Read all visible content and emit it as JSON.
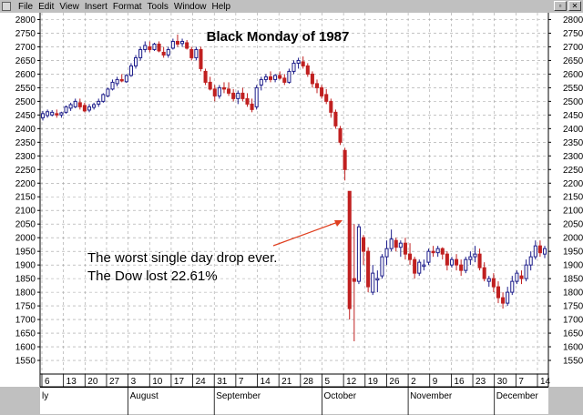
{
  "menubar": {
    "items": [
      {
        "label": "File"
      },
      {
        "label": "Edit"
      },
      {
        "label": "View"
      },
      {
        "label": "Insert"
      },
      {
        "label": "Format"
      },
      {
        "label": "Tools"
      },
      {
        "label": "Window"
      },
      {
        "label": "Help"
      }
    ]
  },
  "chart_data": {
    "type": "candlestick",
    "title": "Black Monday of 1987",
    "annotation": [
      "The worst single day drop ever.",
      "The Dow lost 22.61%"
    ],
    "ylim": [
      1500,
      2825
    ],
    "yticks": [
      1550,
      1600,
      1650,
      1700,
      1750,
      1800,
      1850,
      1900,
      1950,
      2000,
      2050,
      2100,
      2150,
      2200,
      2250,
      2300,
      2350,
      2400,
      2450,
      2500,
      2550,
      2600,
      2650,
      2700,
      2750,
      2800
    ],
    "grid": true,
    "date_ticks": [
      "6",
      "13",
      "20",
      "27",
      "3",
      "10",
      "17",
      "24",
      "31",
      "7",
      "14",
      "21",
      "28",
      "5",
      "12",
      "19",
      "26",
      "2",
      "9",
      "16",
      "23",
      "30",
      "7",
      "14"
    ],
    "month_labels": [
      "ly",
      "August",
      "September",
      "October",
      "November",
      "December"
    ],
    "colors": {
      "up": "#1c1c8a",
      "down": "#c02020",
      "grid": "#a0a0a0",
      "arrow": "#e04020"
    },
    "candles": [
      {
        "o": 2440,
        "h": 2465,
        "l": 2430,
        "c": 2455
      },
      {
        "o": 2448,
        "h": 2470,
        "l": 2440,
        "c": 2462
      },
      {
        "o": 2450,
        "h": 2468,
        "l": 2445,
        "c": 2460
      },
      {
        "o": 2455,
        "h": 2470,
        "l": 2440,
        "c": 2450
      },
      {
        "o": 2450,
        "h": 2462,
        "l": 2440,
        "c": 2458
      },
      {
        "o": 2460,
        "h": 2485,
        "l": 2455,
        "c": 2480
      },
      {
        "o": 2475,
        "h": 2495,
        "l": 2465,
        "c": 2488
      },
      {
        "o": 2480,
        "h": 2510,
        "l": 2475,
        "c": 2500
      },
      {
        "o": 2495,
        "h": 2510,
        "l": 2470,
        "c": 2480
      },
      {
        "o": 2485,
        "h": 2495,
        "l": 2460,
        "c": 2465
      },
      {
        "o": 2468,
        "h": 2490,
        "l": 2460,
        "c": 2480
      },
      {
        "o": 2478,
        "h": 2495,
        "l": 2470,
        "c": 2488
      },
      {
        "o": 2490,
        "h": 2510,
        "l": 2480,
        "c": 2500
      },
      {
        "o": 2500,
        "h": 2530,
        "l": 2495,
        "c": 2525
      },
      {
        "o": 2520,
        "h": 2550,
        "l": 2515,
        "c": 2545
      },
      {
        "o": 2545,
        "h": 2580,
        "l": 2540,
        "c": 2570
      },
      {
        "o": 2565,
        "h": 2590,
        "l": 2555,
        "c": 2580
      },
      {
        "o": 2580,
        "h": 2600,
        "l": 2570,
        "c": 2575
      },
      {
        "o": 2572,
        "h": 2600,
        "l": 2568,
        "c": 2595
      },
      {
        "o": 2595,
        "h": 2640,
        "l": 2590,
        "c": 2630
      },
      {
        "o": 2630,
        "h": 2670,
        "l": 2620,
        "c": 2660
      },
      {
        "o": 2660,
        "h": 2700,
        "l": 2650,
        "c": 2690
      },
      {
        "o": 2690,
        "h": 2720,
        "l": 2680,
        "c": 2705
      },
      {
        "o": 2700,
        "h": 2720,
        "l": 2680,
        "c": 2690
      },
      {
        "o": 2690,
        "h": 2715,
        "l": 2685,
        "c": 2710
      },
      {
        "o": 2710,
        "h": 2720,
        "l": 2680,
        "c": 2685
      },
      {
        "o": 2680,
        "h": 2700,
        "l": 2660,
        "c": 2670
      },
      {
        "o": 2670,
        "h": 2700,
        "l": 2660,
        "c": 2690
      },
      {
        "o": 2695,
        "h": 2730,
        "l": 2690,
        "c": 2720
      },
      {
        "o": 2720,
        "h": 2745,
        "l": 2700,
        "c": 2710
      },
      {
        "o": 2712,
        "h": 2730,
        "l": 2700,
        "c": 2720
      },
      {
        "o": 2715,
        "h": 2725,
        "l": 2690,
        "c": 2695
      },
      {
        "o": 2690,
        "h": 2700,
        "l": 2650,
        "c": 2660
      },
      {
        "o": 2660,
        "h": 2700,
        "l": 2650,
        "c": 2690
      },
      {
        "o": 2690,
        "h": 2700,
        "l": 2610,
        "c": 2620
      },
      {
        "o": 2610,
        "h": 2620,
        "l": 2560,
        "c": 2570
      },
      {
        "o": 2570,
        "h": 2590,
        "l": 2540,
        "c": 2545
      },
      {
        "o": 2545,
        "h": 2560,
        "l": 2500,
        "c": 2520
      },
      {
        "o": 2520,
        "h": 2560,
        "l": 2510,
        "c": 2550
      },
      {
        "o": 2550,
        "h": 2570,
        "l": 2530,
        "c": 2545
      },
      {
        "o": 2545,
        "h": 2570,
        "l": 2520,
        "c": 2530
      },
      {
        "o": 2530,
        "h": 2545,
        "l": 2500,
        "c": 2510
      },
      {
        "o": 2510,
        "h": 2540,
        "l": 2490,
        "c": 2530
      },
      {
        "o": 2530,
        "h": 2550,
        "l": 2500,
        "c": 2510
      },
      {
        "o": 2510,
        "h": 2530,
        "l": 2480,
        "c": 2490
      },
      {
        "o": 2490,
        "h": 2510,
        "l": 2460,
        "c": 2470
      },
      {
        "o": 2480,
        "h": 2560,
        "l": 2470,
        "c": 2550
      },
      {
        "o": 2560,
        "h": 2590,
        "l": 2540,
        "c": 2580
      },
      {
        "o": 2580,
        "h": 2600,
        "l": 2570,
        "c": 2590
      },
      {
        "o": 2590,
        "h": 2610,
        "l": 2570,
        "c": 2580
      },
      {
        "o": 2580,
        "h": 2600,
        "l": 2570,
        "c": 2595
      },
      {
        "o": 2595,
        "h": 2610,
        "l": 2580,
        "c": 2585
      },
      {
        "o": 2585,
        "h": 2600,
        "l": 2560,
        "c": 2570
      },
      {
        "o": 2570,
        "h": 2620,
        "l": 2565,
        "c": 2610
      },
      {
        "o": 2610,
        "h": 2650,
        "l": 2600,
        "c": 2640
      },
      {
        "o": 2640,
        "h": 2660,
        "l": 2620,
        "c": 2650
      },
      {
        "o": 2645,
        "h": 2665,
        "l": 2620,
        "c": 2630
      },
      {
        "o": 2630,
        "h": 2640,
        "l": 2590,
        "c": 2600
      },
      {
        "o": 2600,
        "h": 2610,
        "l": 2550,
        "c": 2565
      },
      {
        "o": 2565,
        "h": 2580,
        "l": 2530,
        "c": 2550
      },
      {
        "o": 2550,
        "h": 2560,
        "l": 2510,
        "c": 2520
      },
      {
        "o": 2525,
        "h": 2545,
        "l": 2490,
        "c": 2500
      },
      {
        "o": 2500,
        "h": 2510,
        "l": 2440,
        "c": 2460
      },
      {
        "o": 2460,
        "h": 2470,
        "l": 2400,
        "c": 2410
      },
      {
        "o": 2400,
        "h": 2410,
        "l": 2340,
        "c": 2350
      },
      {
        "o": 2320,
        "h": 2330,
        "l": 2210,
        "c": 2250
      },
      {
        "o": 2170,
        "h": 2170,
        "l": 1700,
        "c": 1740
      },
      {
        "o": 1850,
        "h": 2050,
        "l": 1620,
        "c": 1840
      },
      {
        "o": 1840,
        "h": 2050,
        "l": 1830,
        "c": 2040
      },
      {
        "o": 2000,
        "h": 2010,
        "l": 1900,
        "c": 1950
      },
      {
        "o": 1950,
        "h": 1965,
        "l": 1800,
        "c": 1820
      },
      {
        "o": 1800,
        "h": 1900,
        "l": 1790,
        "c": 1870
      },
      {
        "o": 1850,
        "h": 1880,
        "l": 1800,
        "c": 1850
      },
      {
        "o": 1860,
        "h": 1940,
        "l": 1850,
        "c": 1930
      },
      {
        "o": 1930,
        "h": 1990,
        "l": 1900,
        "c": 1960
      },
      {
        "o": 1960,
        "h": 2030,
        "l": 1950,
        "c": 1995
      },
      {
        "o": 1990,
        "h": 2000,
        "l": 1950,
        "c": 1965
      },
      {
        "o": 1965,
        "h": 1990,
        "l": 1930,
        "c": 1980
      },
      {
        "o": 1980,
        "h": 2000,
        "l": 1920,
        "c": 1940
      },
      {
        "o": 1940,
        "h": 1980,
        "l": 1900,
        "c": 1920
      },
      {
        "o": 1920,
        "h": 1930,
        "l": 1850,
        "c": 1870
      },
      {
        "o": 1870,
        "h": 1920,
        "l": 1860,
        "c": 1910
      },
      {
        "o": 1900,
        "h": 1920,
        "l": 1880,
        "c": 1900
      },
      {
        "o": 1910,
        "h": 1960,
        "l": 1900,
        "c": 1950
      },
      {
        "o": 1950,
        "h": 1970,
        "l": 1930,
        "c": 1945
      },
      {
        "o": 1945,
        "h": 1970,
        "l": 1930,
        "c": 1960
      },
      {
        "o": 1960,
        "h": 1965,
        "l": 1920,
        "c": 1940
      },
      {
        "o": 1940,
        "h": 1950,
        "l": 1880,
        "c": 1900
      },
      {
        "o": 1900,
        "h": 1930,
        "l": 1890,
        "c": 1920
      },
      {
        "o": 1920,
        "h": 1940,
        "l": 1880,
        "c": 1900
      },
      {
        "o": 1900,
        "h": 1920,
        "l": 1860,
        "c": 1880
      },
      {
        "o": 1880,
        "h": 1930,
        "l": 1870,
        "c": 1920
      },
      {
        "o": 1920,
        "h": 1950,
        "l": 1900,
        "c": 1930
      },
      {
        "o": 1930,
        "h": 1970,
        "l": 1910,
        "c": 1940
      },
      {
        "o": 1940,
        "h": 1960,
        "l": 1880,
        "c": 1890
      },
      {
        "o": 1890,
        "h": 1910,
        "l": 1840,
        "c": 1850
      },
      {
        "o": 1840,
        "h": 1860,
        "l": 1820,
        "c": 1850
      },
      {
        "o": 1850,
        "h": 1870,
        "l": 1800,
        "c": 1820
      },
      {
        "o": 1820,
        "h": 1840,
        "l": 1760,
        "c": 1780
      },
      {
        "o": 1780,
        "h": 1800,
        "l": 1740,
        "c": 1760
      },
      {
        "o": 1760,
        "h": 1820,
        "l": 1750,
        "c": 1800
      },
      {
        "o": 1800,
        "h": 1860,
        "l": 1790,
        "c": 1840
      },
      {
        "o": 1840,
        "h": 1880,
        "l": 1830,
        "c": 1870
      },
      {
        "o": 1860,
        "h": 1880,
        "l": 1830,
        "c": 1850
      },
      {
        "o": 1850,
        "h": 1920,
        "l": 1840,
        "c": 1900
      },
      {
        "o": 1900,
        "h": 1950,
        "l": 1880,
        "c": 1930
      },
      {
        "o": 1930,
        "h": 1990,
        "l": 1920,
        "c": 1970
      },
      {
        "o": 1970,
        "h": 1990,
        "l": 1930,
        "c": 1945
      },
      {
        "o": 1940,
        "h": 1970,
        "l": 1925,
        "c": 1960
      }
    ]
  }
}
